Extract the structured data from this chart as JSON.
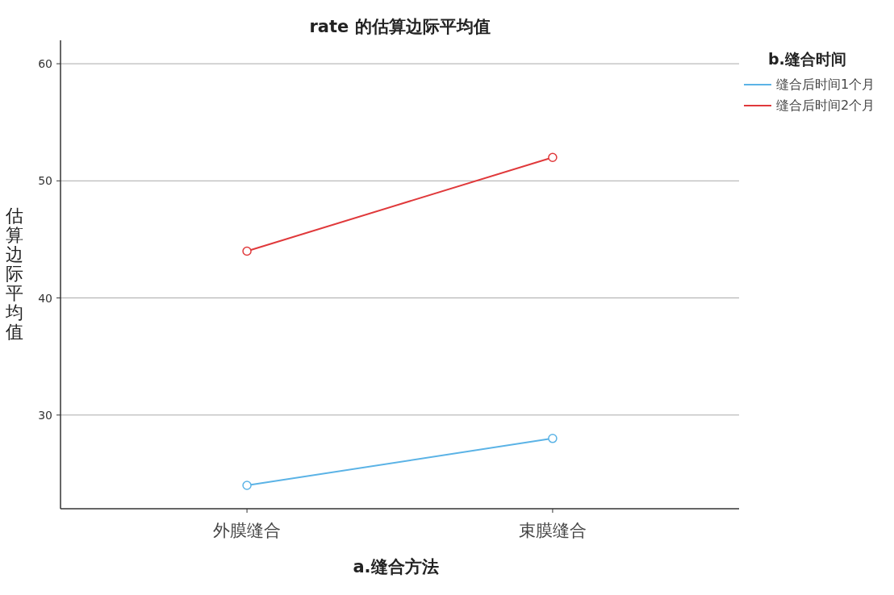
{
  "chart_data": {
    "type": "line",
    "title": "rate 的估算边际平均值",
    "xlabel": "a.缝合方法",
    "ylabel": "估算边际平均值",
    "legend_title": "b.缝合时间",
    "categories": [
      "外膜缝合",
      "束膜缝合"
    ],
    "series": [
      {
        "name": "缝合后时间1个月",
        "color": "#5bb3e6",
        "values": [
          24,
          28
        ]
      },
      {
        "name": "缝合后时间2个月",
        "color": "#e0393b",
        "values": [
          44,
          52
        ]
      }
    ],
    "ylim": [
      22,
      62
    ],
    "yticks": [
      30,
      40,
      50,
      60
    ],
    "grid": "y",
    "legend": "top right",
    "marker": "circle",
    "line_style": "solid"
  }
}
